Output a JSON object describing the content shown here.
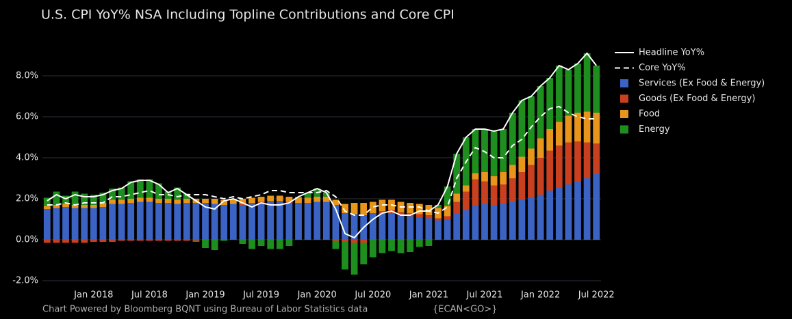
{
  "chart_data": {
    "type": "bar",
    "title": "U.S. CPI YoY% NSA Including Topline Contributions and Core CPI",
    "footer": "Chart Powered by Bloomberg BQNT using Bureau of Labor Statistics data",
    "ticker": "{ECAN<GO>}",
    "categories": [
      null,
      null,
      null,
      null,
      null,
      "Jan 2018",
      null,
      null,
      null,
      null,
      null,
      "Jul 2018",
      null,
      null,
      null,
      null,
      null,
      "Jan 2019",
      null,
      null,
      null,
      null,
      null,
      "Jul 2019",
      null,
      null,
      null,
      null,
      null,
      "Jan 2020",
      null,
      null,
      null,
      null,
      null,
      "Jul 2020",
      null,
      null,
      null,
      null,
      null,
      "Jan 2021",
      null,
      null,
      null,
      null,
      null,
      "Jul 2021",
      null,
      null,
      null,
      null,
      null,
      "Jan 2022",
      null,
      null,
      null,
      null,
      null,
      "Jul 2022"
    ],
    "ylim": [
      -2.2,
      9.3
    ],
    "yticks": [
      {
        "value": -2,
        "label": "-2.0%"
      },
      {
        "value": 0,
        "label": "0.0%"
      },
      {
        "value": 2,
        "label": "2.0%"
      },
      {
        "value": 4,
        "label": "4.0%"
      },
      {
        "value": 6,
        "label": "6.0%"
      },
      {
        "value": 8,
        "label": "8.0%"
      }
    ],
    "grid": true,
    "legend": "right",
    "series": [
      {
        "name": "Headline YoY%",
        "type": "line",
        "color": "#ffffff",
        "dash": false,
        "values": [
          1.9,
          2.2,
          2.0,
          2.2,
          2.1,
          2.1,
          2.2,
          2.4,
          2.5,
          2.8,
          2.9,
          2.9,
          2.7,
          2.3,
          2.5,
          2.2,
          1.9,
          1.6,
          1.5,
          1.9,
          2.0,
          1.8,
          1.6,
          1.8,
          1.7,
          1.7,
          1.8,
          2.1,
          2.3,
          2.5,
          2.3,
          1.5,
          0.3,
          0.1,
          0.6,
          1.0,
          1.3,
          1.4,
          1.2,
          1.2,
          1.4,
          1.4,
          1.7,
          2.6,
          4.2,
          5.0,
          5.4,
          5.4,
          5.3,
          5.4,
          6.2,
          6.8,
          7.0,
          7.5,
          7.9,
          8.5,
          8.3,
          8.6,
          9.1,
          8.5
        ]
      },
      {
        "name": "Core YoY%",
        "type": "line",
        "color": "#ffffff",
        "dash": true,
        "values": [
          1.7,
          1.7,
          1.8,
          1.7,
          1.8,
          1.8,
          1.8,
          2.1,
          2.1,
          2.2,
          2.3,
          2.4,
          2.2,
          2.2,
          2.1,
          2.2,
          2.2,
          2.2,
          2.1,
          2.0,
          2.1,
          2.0,
          2.1,
          2.2,
          2.4,
          2.4,
          2.3,
          2.3,
          2.3,
          2.3,
          2.4,
          2.1,
          1.4,
          1.2,
          1.2,
          1.6,
          1.7,
          1.7,
          1.6,
          1.6,
          1.6,
          1.4,
          1.3,
          1.6,
          3.0,
          3.8,
          4.5,
          4.3,
          4.0,
          4.0,
          4.6,
          4.9,
          5.5,
          6.0,
          6.4,
          6.5,
          6.2,
          6.0,
          5.9,
          5.9
        ]
      },
      {
        "name": "Services (Ex Food & Energy)",
        "type": "bar",
        "color": "#3a63c4",
        "values": [
          1.5,
          1.55,
          1.6,
          1.55,
          1.55,
          1.55,
          1.6,
          1.75,
          1.75,
          1.8,
          1.85,
          1.85,
          1.8,
          1.8,
          1.75,
          1.8,
          1.8,
          1.8,
          1.75,
          1.7,
          1.75,
          1.7,
          1.75,
          1.8,
          1.85,
          1.85,
          1.8,
          1.8,
          1.8,
          1.85,
          1.85,
          1.7,
          1.3,
          1.25,
          1.2,
          1.3,
          1.3,
          1.3,
          1.2,
          1.15,
          1.1,
          1.05,
          0.95,
          1.0,
          1.3,
          1.45,
          1.7,
          1.75,
          1.7,
          1.75,
          1.85,
          1.95,
          2.05,
          2.2,
          2.4,
          2.55,
          2.7,
          2.85,
          3.0,
          3.2
        ]
      },
      {
        "name": "Goods (Ex Food & Energy)",
        "type": "bar",
        "color": "#c8401f",
        "values": [
          -0.15,
          -0.15,
          -0.15,
          -0.15,
          -0.15,
          -0.1,
          -0.1,
          -0.1,
          -0.05,
          -0.05,
          -0.05,
          -0.05,
          -0.05,
          -0.05,
          -0.05,
          -0.05,
          -0.05,
          0,
          0,
          0,
          0,
          0.05,
          0.05,
          0.05,
          0.05,
          0.05,
          0.05,
          0,
          0,
          0,
          0,
          -0.05,
          -0.1,
          -0.15,
          -0.15,
          0,
          0.1,
          0.15,
          0.15,
          0.15,
          0.15,
          0.15,
          0.1,
          0.15,
          0.55,
          0.9,
          1.25,
          1.1,
          0.95,
          0.95,
          1.15,
          1.35,
          1.6,
          1.8,
          1.95,
          2.05,
          2.05,
          1.95,
          1.75,
          1.5
        ]
      },
      {
        "name": "Food",
        "type": "bar",
        "color": "#e8951c",
        "values": [
          0.15,
          0.15,
          0.15,
          0.15,
          0.15,
          0.15,
          0.2,
          0.2,
          0.2,
          0.2,
          0.2,
          0.2,
          0.2,
          0.2,
          0.2,
          0.2,
          0.2,
          0.2,
          0.25,
          0.25,
          0.25,
          0.25,
          0.25,
          0.25,
          0.25,
          0.25,
          0.25,
          0.25,
          0.25,
          0.25,
          0.25,
          0.25,
          0.45,
          0.55,
          0.6,
          0.55,
          0.55,
          0.5,
          0.5,
          0.5,
          0.5,
          0.5,
          0.5,
          0.5,
          0.4,
          0.3,
          0.3,
          0.45,
          0.45,
          0.6,
          0.65,
          0.75,
          0.8,
          0.95,
          1.05,
          1.15,
          1.3,
          1.4,
          1.5,
          1.5
        ]
      },
      {
        "name": "Energy",
        "type": "bar",
        "color": "#1e8f1e",
        "values": [
          0.4,
          0.65,
          0.4,
          0.65,
          0.55,
          0.5,
          0.5,
          0.55,
          0.6,
          0.85,
          0.9,
          0.9,
          0.75,
          0.35,
          0.6,
          0.25,
          -0.05,
          -0.4,
          -0.5,
          -0.05,
          0,
          -0.2,
          -0.45,
          -0.3,
          -0.45,
          -0.45,
          -0.3,
          0.05,
          0.25,
          0.4,
          0.2,
          -0.4,
          -1.35,
          -1.55,
          -1.05,
          -0.85,
          -0.65,
          -0.55,
          -0.65,
          -0.6,
          -0.35,
          -0.3,
          0.15,
          0.95,
          1.95,
          2.35,
          2.15,
          2.1,
          2.2,
          2.1,
          2.55,
          2.75,
          2.55,
          2.55,
          2.5,
          2.75,
          2.25,
          2.4,
          2.85,
          2.3
        ]
      }
    ]
  }
}
